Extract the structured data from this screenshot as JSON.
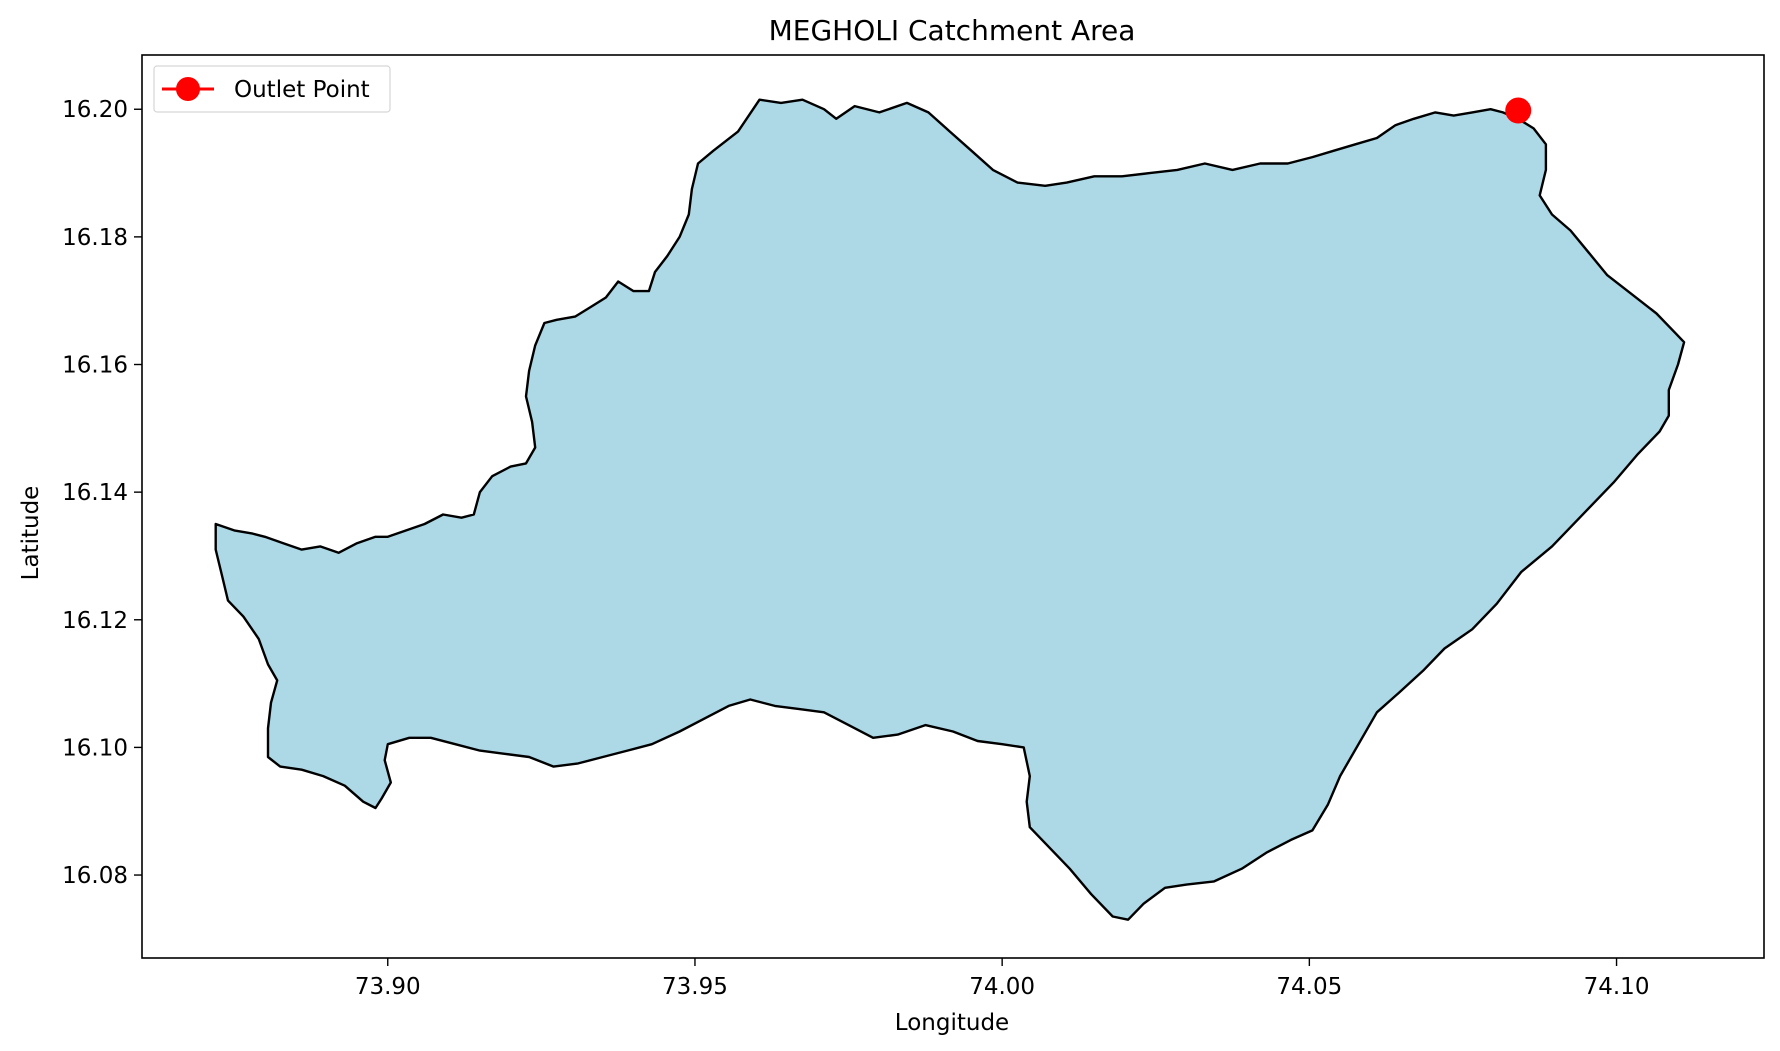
{
  "chart_data": {
    "type": "map",
    "title": "MEGHOLI Catchment Area",
    "xlabel": "Longitude",
    "ylabel": "Latitude",
    "xlim": [
      73.86,
      74.124
    ],
    "ylim": [
      16.067,
      16.2085
    ],
    "x_ticks": [
      73.9,
      73.95,
      74.0,
      74.05,
      74.1
    ],
    "x_tick_labels": [
      "73.90",
      "73.95",
      "74.00",
      "74.05",
      "74.10"
    ],
    "y_ticks": [
      16.08,
      16.1,
      16.12,
      16.14,
      16.16,
      16.18,
      16.2
    ],
    "y_tick_labels": [
      "16.08",
      "16.10",
      "16.12",
      "16.14",
      "16.16",
      "16.18",
      "16.20"
    ],
    "grid": false,
    "legend": {
      "placement": "upper-left",
      "entries": [
        "Outlet Point"
      ]
    },
    "catchment": {
      "fill_color": "#add8e6",
      "edge_color": "#000000",
      "boundary": [
        [
          73.872,
          16.135
        ],
        [
          73.875,
          16.134
        ],
        [
          73.878,
          16.1335
        ],
        [
          73.88,
          16.133
        ],
        [
          73.883,
          16.132
        ],
        [
          73.886,
          16.131
        ],
        [
          73.889,
          16.1315
        ],
        [
          73.892,
          16.1305
        ],
        [
          73.895,
          16.132
        ],
        [
          73.898,
          16.133
        ],
        [
          73.9,
          16.133
        ],
        [
          73.903,
          16.134
        ],
        [
          73.906,
          16.135
        ],
        [
          73.909,
          16.1365
        ],
        [
          73.912,
          16.136
        ],
        [
          73.914,
          16.1365
        ],
        [
          73.915,
          16.14
        ],
        [
          73.917,
          16.1425
        ],
        [
          73.92,
          16.144
        ],
        [
          73.9225,
          16.1445
        ],
        [
          73.924,
          16.147
        ],
        [
          73.9235,
          16.151
        ],
        [
          73.9225,
          16.155
        ],
        [
          73.923,
          16.159
        ],
        [
          73.924,
          16.163
        ],
        [
          73.9255,
          16.1665
        ],
        [
          73.9275,
          16.167
        ],
        [
          73.9305,
          16.1675
        ],
        [
          73.933,
          16.169
        ],
        [
          73.9355,
          16.1705
        ],
        [
          73.9375,
          16.173
        ],
        [
          73.94,
          16.1715
        ],
        [
          73.9425,
          16.1715
        ],
        [
          73.9435,
          16.1745
        ],
        [
          73.9455,
          16.177
        ],
        [
          73.9475,
          16.18
        ],
        [
          73.949,
          16.1835
        ],
        [
          73.9495,
          16.1875
        ],
        [
          73.9505,
          16.1915
        ],
        [
          73.953,
          16.1935
        ],
        [
          73.957,
          16.1965
        ],
        [
          73.9605,
          16.2015
        ],
        [
          73.964,
          16.201
        ],
        [
          73.9675,
          16.2015
        ],
        [
          73.971,
          16.2
        ],
        [
          73.973,
          16.1985
        ],
        [
          73.976,
          16.2005
        ],
        [
          73.98,
          16.1995
        ],
        [
          73.9845,
          16.201
        ],
        [
          73.988,
          16.1995
        ],
        [
          73.9915,
          16.1965
        ],
        [
          73.995,
          16.1935
        ],
        [
          73.9985,
          16.1905
        ],
        [
          74.0025,
          16.1885
        ],
        [
          74.007,
          16.188
        ],
        [
          74.0105,
          16.1885
        ],
        [
          74.015,
          16.1895
        ],
        [
          74.0195,
          16.1895
        ],
        [
          74.024,
          16.19
        ],
        [
          74.0285,
          16.1905
        ],
        [
          74.033,
          16.1915
        ],
        [
          74.0375,
          16.1905
        ],
        [
          74.042,
          16.1915
        ],
        [
          74.0465,
          16.1915
        ],
        [
          74.0505,
          16.1925
        ],
        [
          74.054,
          16.1935
        ],
        [
          74.0575,
          16.1945
        ],
        [
          74.061,
          16.1955
        ],
        [
          74.064,
          16.1975
        ],
        [
          74.067,
          16.1985
        ],
        [
          74.0705,
          16.1995
        ],
        [
          74.0735,
          16.199
        ],
        [
          74.0765,
          16.1995
        ],
        [
          74.0795,
          16.2
        ],
        [
          74.0815,
          16.1995
        ],
        [
          74.084,
          16.1985
        ],
        [
          74.0865,
          16.197
        ],
        [
          74.0885,
          16.1945
        ],
        [
          74.0885,
          16.1905
        ],
        [
          74.0875,
          16.1865
        ],
        [
          74.0895,
          16.1835
        ],
        [
          74.0925,
          16.181
        ],
        [
          74.0955,
          16.1775
        ],
        [
          74.0985,
          16.174
        ],
        [
          74.1025,
          16.171
        ],
        [
          74.1065,
          16.168
        ],
        [
          74.1095,
          16.165
        ],
        [
          74.111,
          16.1635
        ],
        [
          74.11,
          16.16
        ],
        [
          74.1085,
          16.156
        ],
        [
          74.1085,
          16.152
        ],
        [
          74.107,
          16.1495
        ],
        [
          74.1035,
          16.146
        ],
        [
          74.0995,
          16.1415
        ],
        [
          74.095,
          16.137
        ],
        [
          74.0895,
          16.1315
        ],
        [
          74.0845,
          16.1275
        ],
        [
          74.0805,
          16.1225
        ],
        [
          74.0765,
          16.1185
        ],
        [
          74.072,
          16.1155
        ],
        [
          74.0685,
          16.112
        ],
        [
          74.0645,
          16.1085
        ],
        [
          74.061,
          16.1055
        ],
        [
          74.058,
          16.1005
        ],
        [
          74.055,
          16.0955
        ],
        [
          74.053,
          16.091
        ],
        [
          74.0505,
          16.087
        ],
        [
          74.047,
          16.0855
        ],
        [
          74.043,
          16.0835
        ],
        [
          74.039,
          16.081
        ],
        [
          74.0345,
          16.079
        ],
        [
          74.03,
          16.0785
        ],
        [
          74.0265,
          16.078
        ],
        [
          74.023,
          16.0755
        ],
        [
          74.0205,
          16.073
        ],
        [
          74.018,
          16.0735
        ],
        [
          74.0145,
          16.077
        ],
        [
          74.011,
          16.081
        ],
        [
          74.0075,
          16.0845
        ],
        [
          74.0045,
          16.0875
        ],
        [
          74.004,
          16.0915
        ],
        [
          74.0045,
          16.0955
        ],
        [
          74.0035,
          16.1
        ],
        [
          74.0,
          16.1005
        ],
        [
          73.996,
          16.101
        ],
        [
          73.992,
          16.1025
        ],
        [
          73.9875,
          16.1035
        ],
        [
          73.983,
          16.102
        ],
        [
          73.979,
          16.1015
        ],
        [
          73.975,
          16.1035
        ],
        [
          73.971,
          16.1055
        ],
        [
          73.967,
          16.106
        ],
        [
          73.963,
          16.1065
        ],
        [
          73.959,
          16.1075
        ],
        [
          73.9555,
          16.1065
        ],
        [
          73.9515,
          16.1045
        ],
        [
          73.9475,
          16.1025
        ],
        [
          73.943,
          16.1005
        ],
        [
          73.939,
          16.0995
        ],
        [
          73.935,
          16.0985
        ],
        [
          73.931,
          16.0975
        ],
        [
          73.927,
          16.097
        ],
        [
          73.923,
          16.0985
        ],
        [
          73.919,
          16.099
        ],
        [
          73.915,
          16.0995
        ],
        [
          73.911,
          16.1005
        ],
        [
          73.907,
          16.1015
        ],
        [
          73.9035,
          16.1015
        ],
        [
          73.9,
          16.1005
        ],
        [
          73.8995,
          16.098
        ],
        [
          73.9005,
          16.0945
        ],
        [
          73.899,
          16.092
        ],
        [
          73.898,
          16.0905
        ],
        [
          73.896,
          16.0915
        ],
        [
          73.893,
          16.094
        ],
        [
          73.8895,
          16.0955
        ],
        [
          73.886,
          16.0965
        ],
        [
          73.8825,
          16.097
        ],
        [
          73.8805,
          16.0985
        ],
        [
          73.8805,
          16.103
        ],
        [
          73.881,
          16.107
        ],
        [
          73.882,
          16.1105
        ],
        [
          73.8805,
          16.113
        ],
        [
          73.879,
          16.117
        ],
        [
          73.8765,
          16.1205
        ],
        [
          73.874,
          16.123
        ],
        [
          73.873,
          16.127
        ],
        [
          73.872,
          16.131
        ],
        [
          73.872,
          16.135
        ]
      ]
    },
    "series": [
      {
        "name": "Outlet Point",
        "type": "point",
        "color": "#ff0000",
        "x": 74.084,
        "y": 16.1998
      }
    ]
  }
}
